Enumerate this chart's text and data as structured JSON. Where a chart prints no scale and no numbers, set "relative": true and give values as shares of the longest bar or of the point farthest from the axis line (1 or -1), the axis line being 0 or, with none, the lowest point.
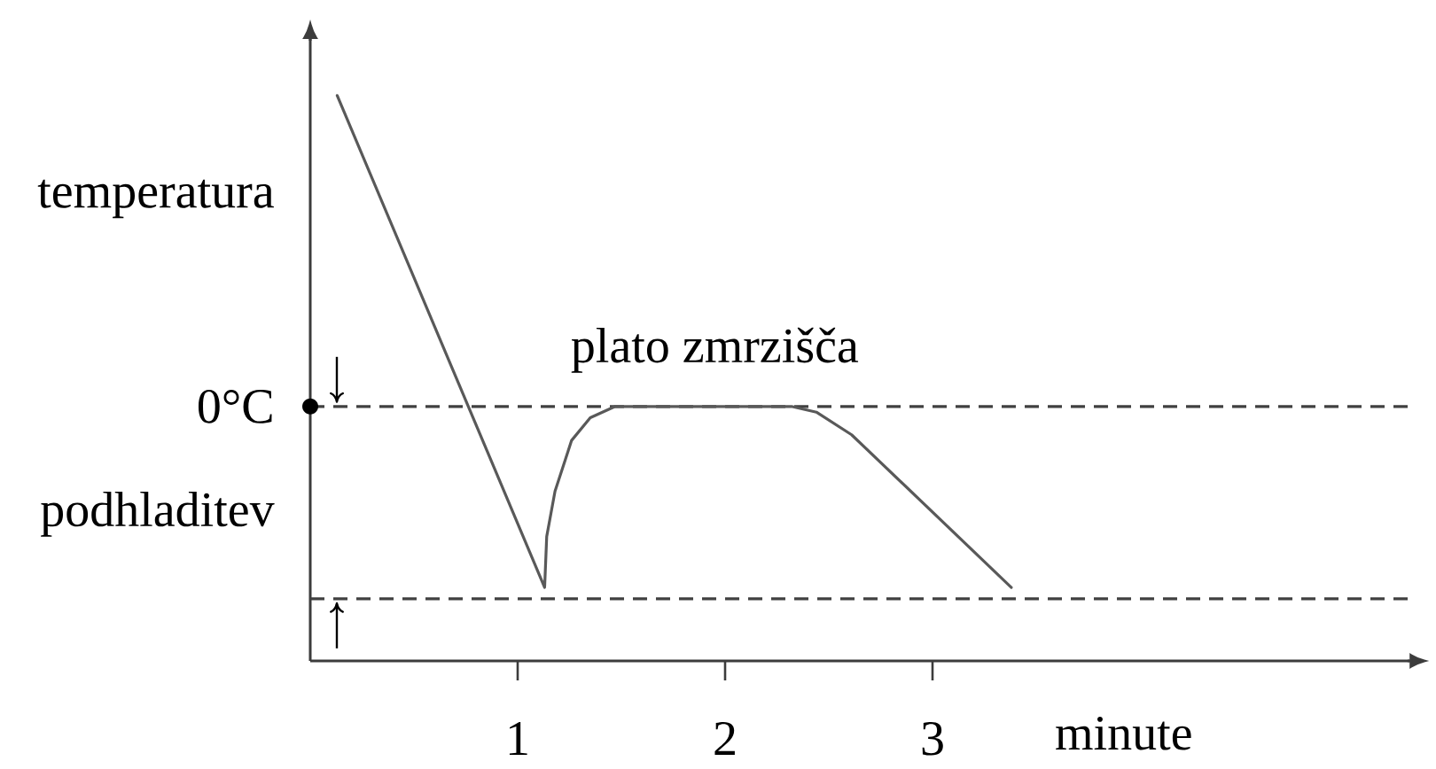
{
  "chart_data": {
    "type": "line",
    "xlabel": "minute",
    "ylabel": "temperatura",
    "relative": true,
    "x": [
      0.13,
      1.13,
      1.14,
      1.18,
      1.26,
      1.35,
      1.47,
      1.75,
      2.03,
      2.32,
      2.44,
      2.61,
      3.38
    ],
    "values": [
      1.0,
      0.13,
      0.22,
      0.3,
      0.39,
      0.43,
      0.45,
      0.45,
      0.45,
      0.45,
      0.44,
      0.4,
      0.13
    ],
    "color": "#595959",
    "xlim": [
      0,
      5.3
    ],
    "xticks": [
      1,
      2,
      3
    ],
    "ref_lines": [
      {
        "axis": "y",
        "value": 0.45,
        "label": "0°C",
        "line_style": "dashed",
        "color": "#404040"
      },
      {
        "axis": "y",
        "value": 0.11,
        "line_style": "dashed",
        "color": "#404040"
      }
    ],
    "annotations": [
      {
        "text": "plato zmrzišča",
        "x": 1.95,
        "y": 0.45
      },
      "podhladitev"
    ]
  }
}
